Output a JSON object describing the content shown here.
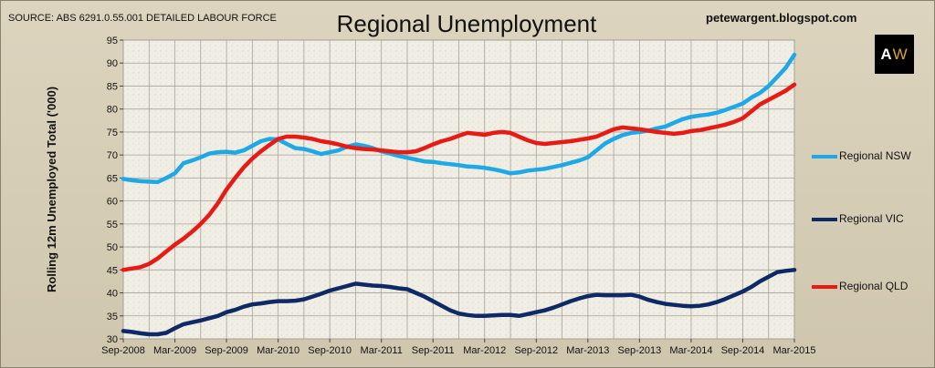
{
  "header": {
    "source": "SOURCE: ABS 6291.0.55.001 DETAILED LABOUR FORCE",
    "blog": "petewargent.blogspot.com",
    "logo_letters": [
      "A",
      "W"
    ]
  },
  "chart_data": {
    "type": "line",
    "title": "Regional Unemployment",
    "xlabel": "",
    "ylabel": "Rolling 12m Unemployed Total ('000)",
    "ylim": [
      30,
      95
    ],
    "yticks": [
      30,
      35,
      40,
      45,
      50,
      55,
      60,
      65,
      70,
      75,
      80,
      85,
      90,
      95
    ],
    "xlim": [
      "2008-09",
      "2015-03"
    ],
    "xticks": [
      "Sep-2008",
      "Mar-2009",
      "Sep-2009",
      "Mar-2010",
      "Sep-2010",
      "Mar-2011",
      "Sep-2011",
      "Mar-2012",
      "Sep-2012",
      "Mar-2013",
      "Sep-2013",
      "Mar-2014",
      "Sep-2014",
      "Mar-2015"
    ],
    "grid": true,
    "legend": "right",
    "x": [
      "2008-09",
      "2008-10",
      "2008-11",
      "2008-12",
      "2009-01",
      "2009-02",
      "2009-03",
      "2009-04",
      "2009-05",
      "2009-06",
      "2009-07",
      "2009-08",
      "2009-09",
      "2009-10",
      "2009-11",
      "2009-12",
      "2010-01",
      "2010-02",
      "2010-03",
      "2010-04",
      "2010-05",
      "2010-06",
      "2010-07",
      "2010-08",
      "2010-09",
      "2010-10",
      "2010-11",
      "2010-12",
      "2011-01",
      "2011-02",
      "2011-03",
      "2011-04",
      "2011-05",
      "2011-06",
      "2011-07",
      "2011-08",
      "2011-09",
      "2011-10",
      "2011-11",
      "2011-12",
      "2012-01",
      "2012-02",
      "2012-03",
      "2012-04",
      "2012-05",
      "2012-06",
      "2012-07",
      "2012-08",
      "2012-09",
      "2012-10",
      "2012-11",
      "2012-12",
      "2013-01",
      "2013-02",
      "2013-03",
      "2013-04",
      "2013-05",
      "2013-06",
      "2013-07",
      "2013-08",
      "2013-09",
      "2013-10",
      "2013-11",
      "2013-12",
      "2014-01",
      "2014-02",
      "2014-03",
      "2014-04",
      "2014-05",
      "2014-06",
      "2014-07",
      "2014-08",
      "2014-09",
      "2014-10",
      "2014-11",
      "2014-12",
      "2015-01",
      "2015-02",
      "2015-03"
    ],
    "series": [
      {
        "name": "Regional NSW",
        "color": "#1ea8e6",
        "values": [
          64.8,
          64.5,
          64.3,
          64.2,
          64.1,
          65.0,
          66.0,
          68.2,
          68.8,
          69.5,
          70.3,
          70.6,
          70.7,
          70.5,
          71.0,
          72.0,
          73.0,
          73.5,
          73.4,
          72.4,
          71.5,
          71.3,
          70.8,
          70.2,
          70.6,
          71.0,
          71.8,
          72.3,
          72.0,
          71.5,
          70.8,
          70.3,
          69.8,
          69.4,
          69.0,
          68.6,
          68.5,
          68.2,
          68.0,
          67.8,
          67.5,
          67.4,
          67.2,
          66.9,
          66.5,
          66.0,
          66.2,
          66.6,
          66.8,
          67.0,
          67.4,
          67.8,
          68.3,
          68.8,
          69.5,
          71.0,
          72.5,
          73.5,
          74.3,
          74.8,
          75.0,
          75.3,
          75.8,
          76.2,
          77.0,
          77.8,
          78.3,
          78.6,
          78.8,
          79.2,
          79.8,
          80.5,
          81.2,
          82.5,
          83.5,
          85.0,
          87.0,
          89.0,
          91.8
        ]
      },
      {
        "name": "Regional VIC",
        "color": "#0d2a66",
        "values": [
          31.7,
          31.5,
          31.2,
          31.0,
          31.0,
          31.3,
          32.3,
          33.2,
          33.6,
          34.0,
          34.5,
          35.0,
          35.8,
          36.3,
          37.0,
          37.5,
          37.7,
          38.0,
          38.2,
          38.2,
          38.3,
          38.6,
          39.2,
          39.8,
          40.5,
          41.0,
          41.5,
          42.0,
          41.8,
          41.6,
          41.5,
          41.3,
          41.0,
          40.8,
          40.0,
          39.2,
          38.2,
          37.2,
          36.2,
          35.5,
          35.2,
          35.0,
          35.0,
          35.1,
          35.2,
          35.2,
          35.0,
          35.4,
          35.8,
          36.2,
          36.8,
          37.5,
          38.2,
          38.8,
          39.3,
          39.6,
          39.5,
          39.5,
          39.5,
          39.6,
          39.2,
          38.5,
          38.0,
          37.6,
          37.4,
          37.2,
          37.1,
          37.2,
          37.5,
          38.0,
          38.7,
          39.5,
          40.3,
          41.3,
          42.5,
          43.5,
          44.5,
          44.8,
          45.0
        ]
      },
      {
        "name": "Regional QLD",
        "color": "#e81a14",
        "values": [
          45.0,
          45.3,
          45.6,
          46.3,
          47.5,
          49.0,
          50.5,
          51.8,
          53.3,
          55.0,
          57.0,
          59.5,
          62.5,
          65.0,
          67.3,
          69.2,
          70.8,
          72.2,
          73.5,
          74.0,
          74.0,
          73.8,
          73.5,
          73.0,
          72.7,
          72.3,
          71.8,
          71.5,
          71.3,
          71.2,
          71.0,
          70.8,
          70.6,
          70.6,
          70.8,
          71.5,
          72.3,
          73.0,
          73.5,
          74.2,
          74.8,
          74.6,
          74.4,
          74.8,
          75.0,
          74.8,
          74.0,
          73.2,
          72.6,
          72.4,
          72.6,
          72.8,
          73.0,
          73.3,
          73.6,
          74.0,
          74.8,
          75.6,
          76.0,
          75.8,
          75.6,
          75.3,
          75.0,
          74.8,
          74.6,
          74.8,
          75.2,
          75.4,
          75.8,
          76.2,
          76.6,
          77.2,
          78.0,
          79.5,
          81.0,
          82.0,
          83.0,
          84.0,
          85.3
        ]
      }
    ]
  }
}
